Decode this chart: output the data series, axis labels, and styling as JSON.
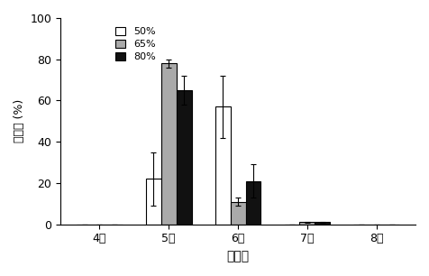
{
  "categories": [
    "4일",
    "5일",
    "6일",
    "7일",
    "8일"
  ],
  "series": {
    "50%": [
      0,
      22,
      57,
      0,
      0
    ],
    "65%": [
      0,
      78,
      11,
      1,
      0
    ],
    "80%": [
      0,
      65,
      21,
      1,
      0
    ]
  },
  "errors": {
    "50%": [
      0,
      13,
      15,
      0,
      0
    ],
    "65%": [
      0,
      2,
      2,
      0.3,
      0
    ],
    "80%": [
      0,
      7,
      8,
      0.3,
      0
    ]
  },
  "colors": {
    "50%": "#ffffff",
    "65%": "#aaaaaa",
    "80%": "#111111"
  },
  "edgecolors": {
    "50%": "#000000",
    "65%": "#000000",
    "80%": "#000000"
  },
  "ylabel": "제화율 (%)",
  "xlabel": "부화일",
  "ylim": [
    0,
    100
  ],
  "yticks": [
    0,
    20,
    40,
    60,
    80,
    100
  ],
  "legend_labels": [
    "50%",
    "65%",
    "80%"
  ],
  "bar_width": 0.22,
  "group_positions": [
    0,
    1,
    2,
    3,
    4
  ]
}
